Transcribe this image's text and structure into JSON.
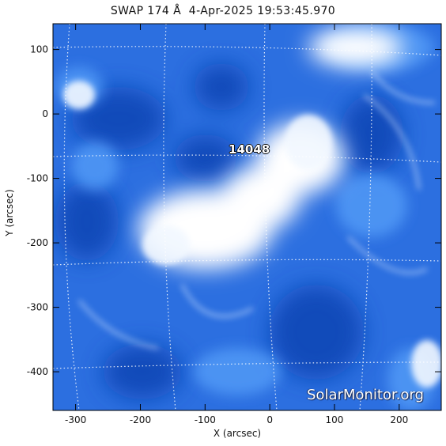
{
  "title": "SWAP 174 Å  4-Apr-2025 19:53:45.970",
  "watermark": "SolarMonitor.org",
  "chart_data": {
    "type": "heatmap",
    "title": "SWAP 174 Å  4-Apr-2025 19:53:45.970",
    "xlabel": "X (arcsec)",
    "ylabel": "Y (arcsec)",
    "xlim": [
      -335,
      265
    ],
    "ylim": [
      -460,
      140
    ],
    "xticks": [
      -300,
      -200,
      -100,
      0,
      100,
      200
    ],
    "yticks": [
      100,
      0,
      -100,
      -200,
      -300,
      -400
    ],
    "grid": true,
    "colors": {
      "low": "#0b3a9e",
      "mid": "#2f7be8",
      "high": "#ffffff"
    },
    "annotations": [
      {
        "text": "14048",
        "x": -27,
        "y": -55
      }
    ]
  }
}
